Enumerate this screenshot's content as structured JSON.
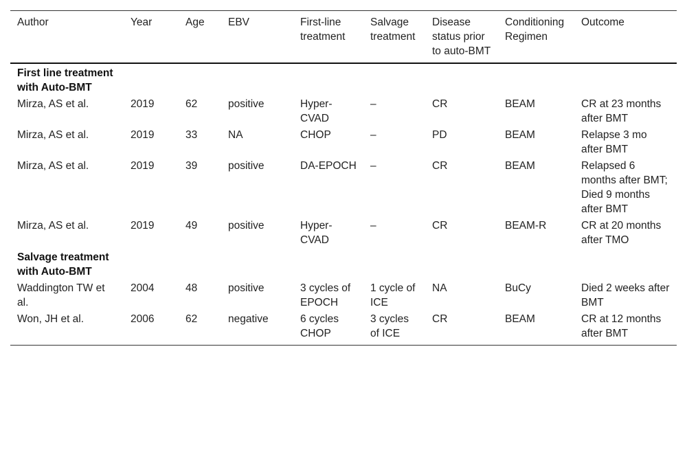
{
  "columns": [
    "Author",
    "Year",
    "Age",
    "EBV",
    "First-line treatment",
    "Salvage treatment",
    "Disease status prior to auto-BMT",
    "Conditioning Regimen",
    "Outcome"
  ],
  "sections": [
    {
      "title": "First line treatment with Auto-BMT",
      "rows": [
        [
          "Mirza, AS et al.",
          "2019",
          "62",
          "positive",
          "Hyper-CVAD",
          "–",
          "CR",
          "BEAM",
          "CR at 23 months after BMT"
        ],
        [
          "Mirza, AS et al.",
          "2019",
          "33",
          "NA",
          "CHOP",
          "–",
          "PD",
          "BEAM",
          "Relapse 3 mo after BMT"
        ],
        [
          "Mirza, AS et al.",
          "2019",
          "39",
          "positive",
          "DA-EPOCH",
          "–",
          "CR",
          "BEAM",
          "Relapsed 6 months after BMT; Died 9 months after BMT"
        ],
        [
          "Mirza, AS et al.",
          "2019",
          "49",
          "positive",
          "Hyper-CVAD",
          "–",
          "CR",
          "BEAM-R",
          "CR at 20 months after TMO"
        ]
      ]
    },
    {
      "title": "Salvage treatment with Auto-BMT",
      "rows": [
        [
          "Waddington TW et al.",
          "2004",
          "48",
          "positive",
          "3 cycles of EPOCH",
          "1 cycle of ICE",
          "NA",
          "BuCy",
          "Died 2 weeks after BMT"
        ],
        [
          "Won, JH et al.",
          "2006",
          "62",
          "negative",
          "6 cycles CHOP",
          "3 cycles of ICE",
          "CR",
          "BEAM",
          "CR at 12 months after BMT"
        ]
      ]
    }
  ]
}
